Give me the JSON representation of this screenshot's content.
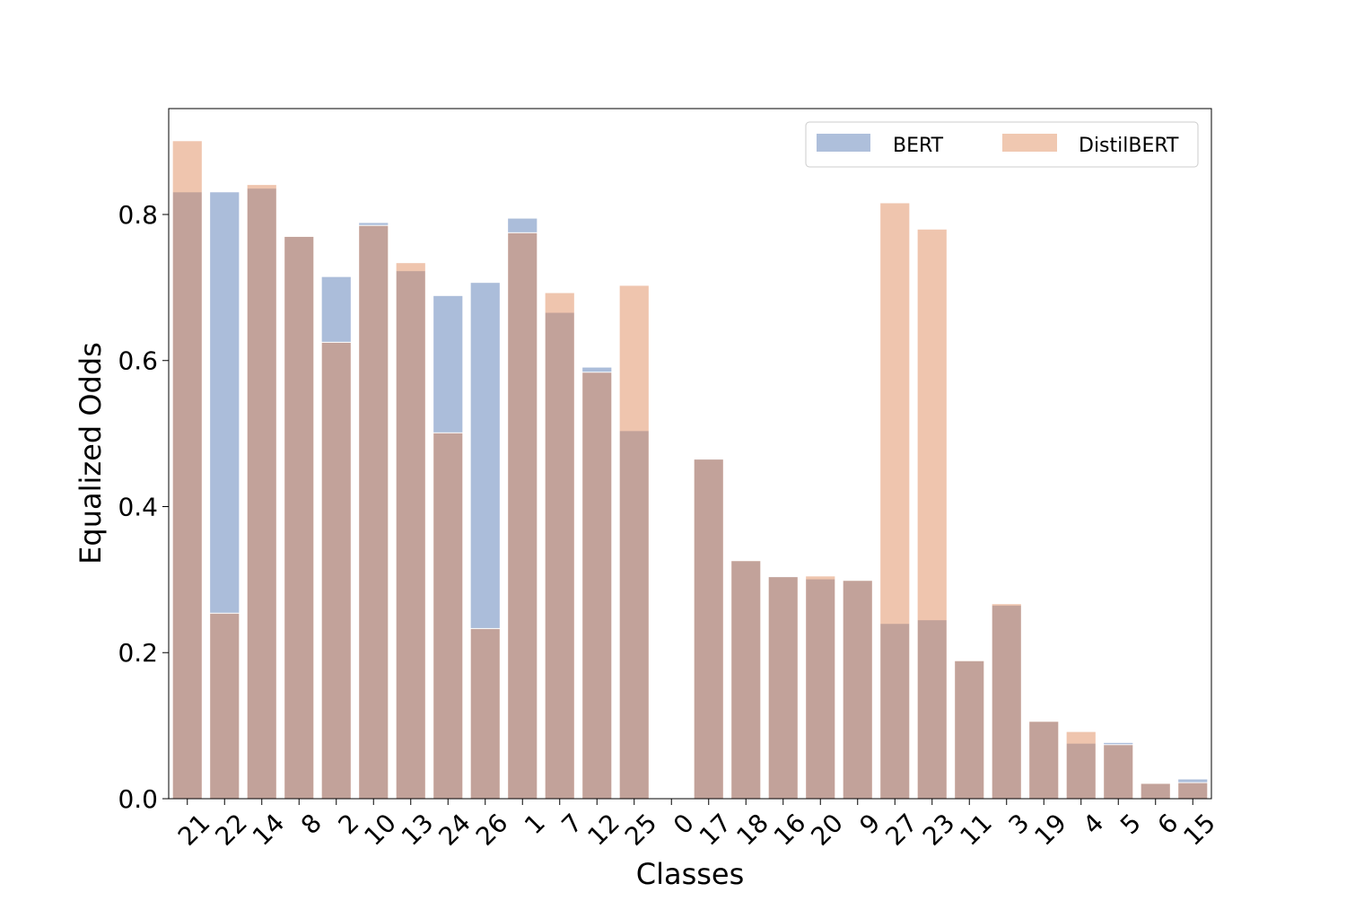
{
  "chart_data": {
    "type": "bar",
    "title": "",
    "xlabel": "Classes",
    "ylabel": "Equalized Odds",
    "ylim": [
      0,
      0.945
    ],
    "yticks": [
      "0.0",
      "0.2",
      "0.4",
      "0.6",
      "0.8"
    ],
    "grid": false,
    "legend_position": "top-right",
    "categories": [
      "21",
      "22",
      "14",
      "8",
      "2",
      "10",
      "13",
      "24",
      "26",
      "1",
      "7",
      "12",
      "25",
      "0",
      "17",
      "18",
      "16",
      "20",
      "9",
      "27",
      "23",
      "11",
      "3",
      "19",
      "4",
      "5",
      "6",
      "15"
    ],
    "series": [
      {
        "name": "BERT",
        "color": "#4c72b0",
        "values": [
          0.831,
          0.831,
          0.836,
          0.77,
          0.715,
          0.789,
          0.723,
          0.689,
          0.707,
          0.795,
          0.666,
          0.591,
          0.504,
          0.0,
          0.466,
          0.326,
          0.305,
          0.301,
          0.299,
          0.24,
          0.245,
          0.189,
          0.265,
          0.106,
          0.076,
          0.077,
          0.021,
          0.027
        ]
      },
      {
        "name": "DistilBERT",
        "color": "#dd8452",
        "values": [
          0.901,
          0.254,
          0.841,
          0.77,
          0.625,
          0.785,
          0.734,
          0.501,
          0.233,
          0.775,
          0.693,
          0.584,
          0.703,
          0.0,
          0.465,
          0.326,
          0.304,
          0.305,
          0.299,
          0.816,
          0.78,
          0.189,
          0.267,
          0.106,
          0.092,
          0.074,
          0.021,
          0.022
        ]
      }
    ]
  }
}
